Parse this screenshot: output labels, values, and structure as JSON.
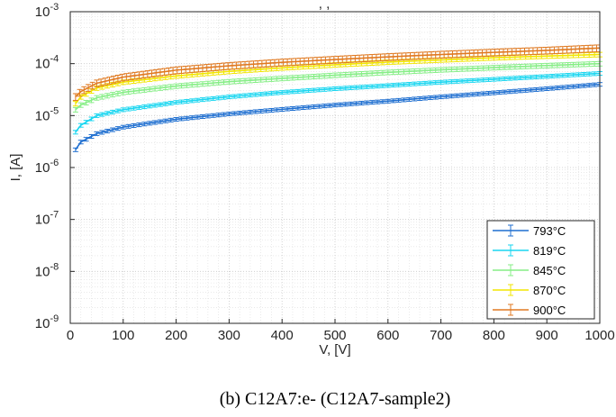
{
  "chart_data": {
    "type": "line",
    "xlabel": "V, [V]",
    "ylabel": "I, [A]",
    "xlim": [
      0,
      1000
    ],
    "ylim": [
      1e-09,
      0.001
    ],
    "yscale": "log",
    "grid": true,
    "minor_grid": true,
    "legend_position": "bottom-right",
    "x_ticks": [
      "0",
      "100",
      "200",
      "300",
      "400",
      "500",
      "600",
      "700",
      "800",
      "900",
      "1000"
    ],
    "y_ticks": [
      {
        "base": "10",
        "exp": "-9"
      },
      {
        "base": "10",
        "exp": "-8"
      },
      {
        "base": "10",
        "exp": "-7"
      },
      {
        "base": "10",
        "exp": "-6"
      },
      {
        "base": "10",
        "exp": "-5"
      },
      {
        "base": "10",
        "exp": "-4"
      },
      {
        "base": "10",
        "exp": "-3"
      }
    ],
    "x": [
      10,
      20,
      50,
      100,
      200,
      300,
      400,
      500,
      600,
      700,
      800,
      900,
      1000
    ],
    "series": [
      {
        "name": "793°C",
        "color": "#1f6fd0",
        "values": [
          2.2e-06,
          3.1e-06,
          4.5e-06,
          6e-06,
          8.5e-06,
          1.08e-05,
          1.32e-05,
          1.6e-05,
          1.9e-05,
          2.3e-05,
          2.75e-05,
          3.3e-05,
          4e-05
        ],
        "error_rel": 0.08
      },
      {
        "name": "819°C",
        "color": "#1ad6f0",
        "values": [
          4.8e-06,
          6.5e-06,
          1e-05,
          1.3e-05,
          1.8e-05,
          2.3e-05,
          2.8e-05,
          3.3e-05,
          3.8e-05,
          4.4e-05,
          5e-05,
          5.7e-05,
          6.5e-05
        ],
        "error_rel": 0.08
      },
      {
        "name": "845°C",
        "color": "#86ee86",
        "values": [
          1.3e-05,
          1.6e-05,
          2.2e-05,
          2.8e-05,
          3.7e-05,
          4.5e-05,
          5.2e-05,
          6e-05,
          6.8e-05,
          7.6e-05,
          8.4e-05,
          9.2e-05,
          0.0001
        ],
        "error_rel": 0.1
      },
      {
        "name": "870°C",
        "color": "#f2e600",
        "values": [
          1.7e-05,
          2.3e-05,
          3.4e-05,
          4.4e-05,
          5.8e-05,
          7.1e-05,
          8.3e-05,
          9.5e-05,
          0.000107,
          0.000118,
          0.00013,
          0.00014,
          0.00015
        ],
        "error_rel": 0.1
      },
      {
        "name": "900°C",
        "color": "#e07a22",
        "values": [
          2.3e-05,
          2.9e-05,
          4.2e-05,
          5.5e-05,
          7.5e-05,
          9.1e-05,
          0.000106,
          0.00012,
          0.000135,
          0.00015,
          0.000165,
          0.00018,
          0.0002
        ],
        "error_rel": 0.15
      }
    ],
    "title_fragment": ", ,"
  },
  "caption": "(b)   C12A7:e- (C12A7-sample2)"
}
